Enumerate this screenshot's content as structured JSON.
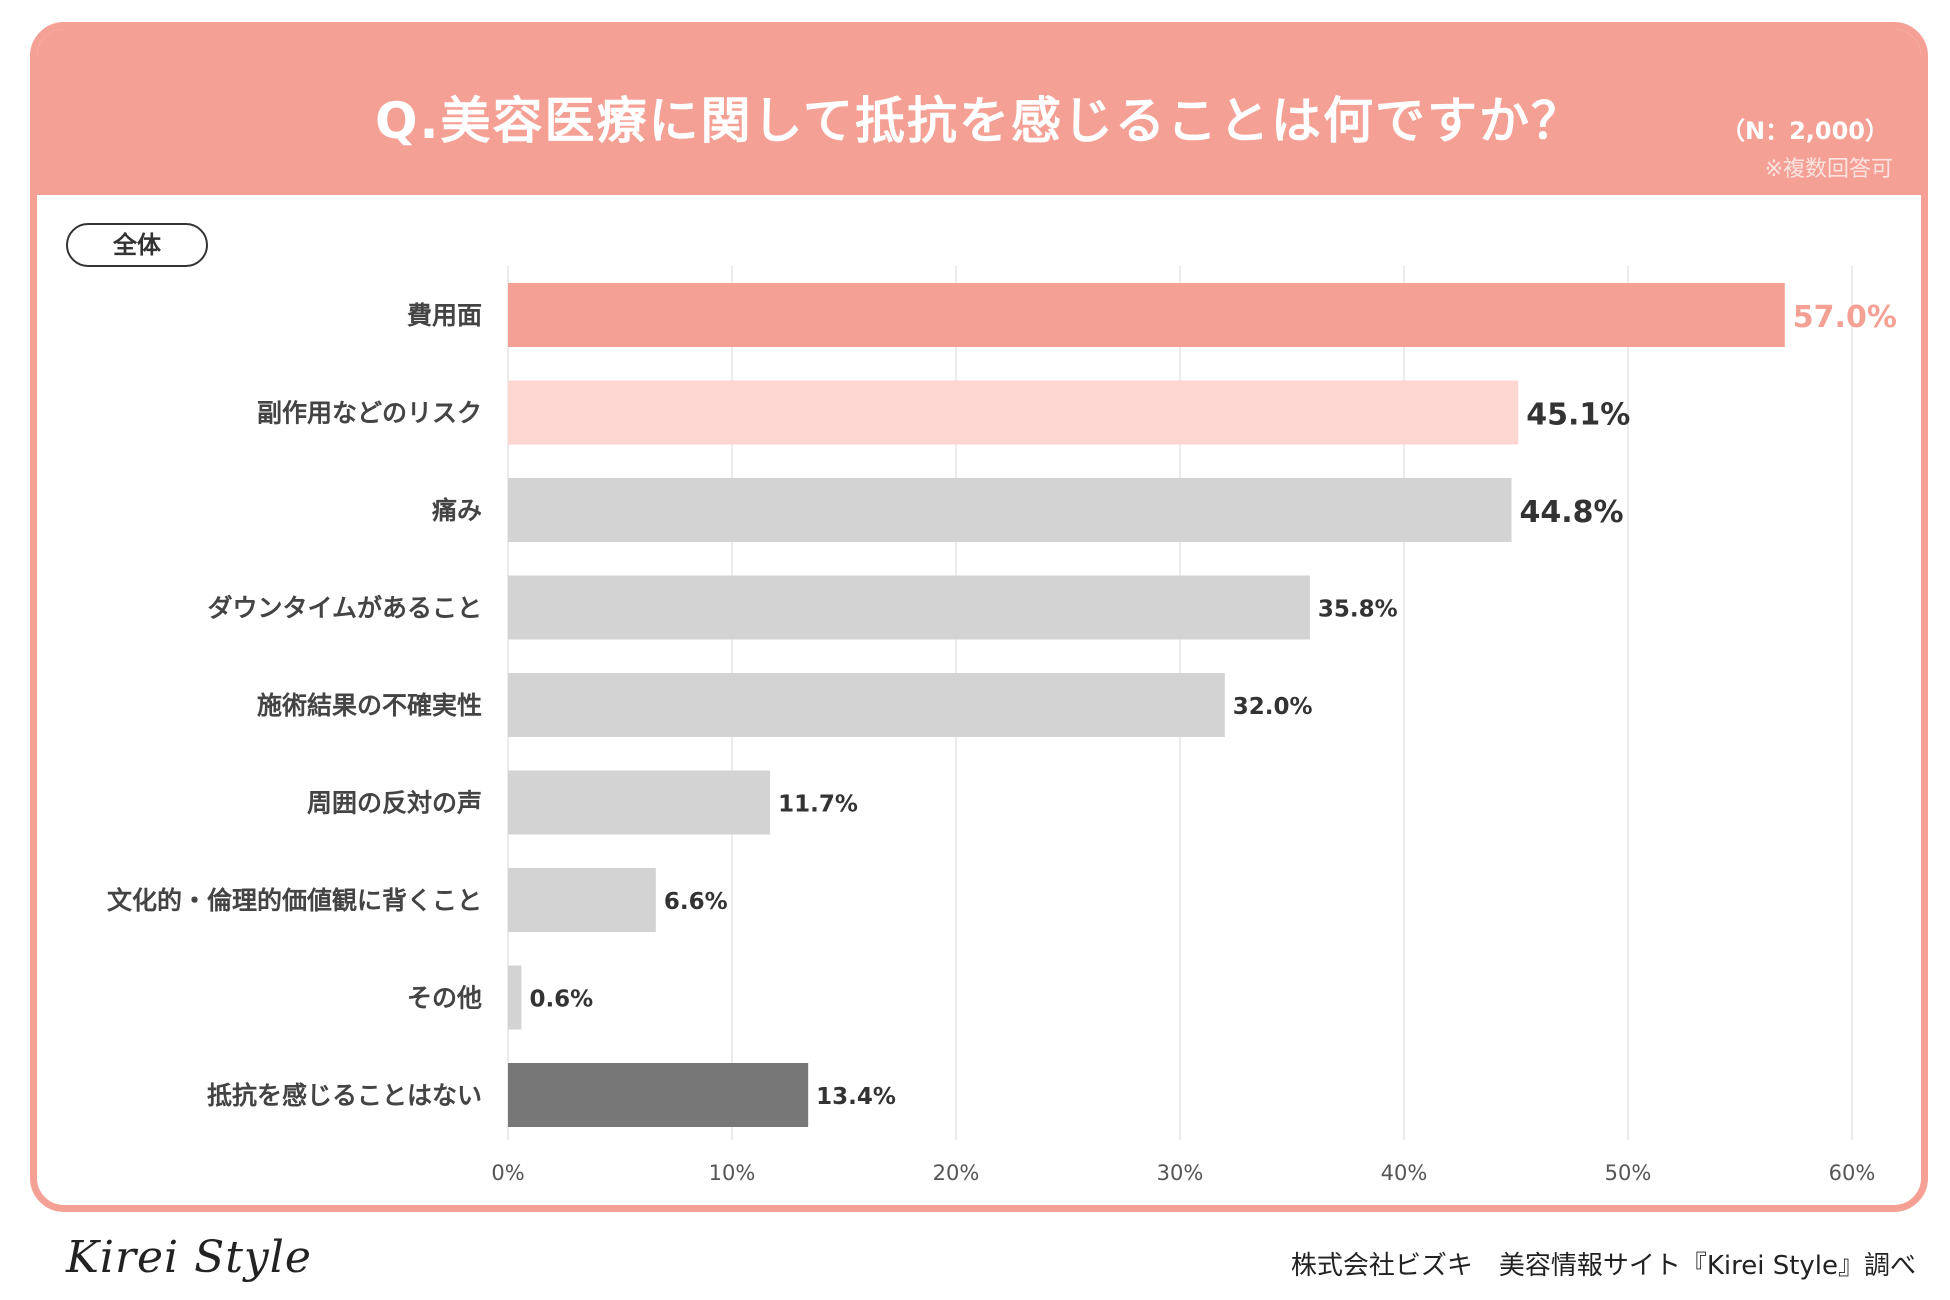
{
  "header": {
    "title": "Q.美容医療に関して抵抗を感じることは何ですか？",
    "n_label": "（N：2,000）",
    "note": "※複数回答可"
  },
  "segment_label": "全体",
  "chart_data": {
    "type": "bar",
    "orientation": "horizontal",
    "categories": [
      "費用面",
      "副作用などのリスク",
      "痛み",
      "ダウンタイムがあること",
      "施術結果の不確実性",
      "周囲の反対の声",
      "文化的・倫理的価値観に背くこと",
      "その他",
      "抵抗を感じることはない"
    ],
    "values": [
      57.0,
      45.1,
      44.8,
      35.8,
      32.0,
      11.7,
      6.6,
      0.6,
      13.4
    ],
    "value_labels": [
      "57.0%",
      "45.1%",
      "44.8%",
      "35.8%",
      "32.0%",
      "11.7%",
      "6.6%",
      "0.6%",
      "13.4%"
    ],
    "bar_colors": [
      "#F5A095",
      "#FDD6D1",
      "#D3D3D3",
      "#D3D3D3",
      "#D3D3D3",
      "#D3D3D3",
      "#D3D3D3",
      "#D3D3D3",
      "#777777"
    ],
    "label_colors": [
      "#F5A095",
      "#333333",
      "#333333",
      "#333333",
      "#333333",
      "#333333",
      "#333333",
      "#333333",
      "#333333"
    ],
    "xlim": [
      0,
      60
    ],
    "xticks": [
      0,
      10,
      20,
      30,
      40,
      50,
      60
    ],
    "xtick_labels": [
      "0%",
      "10%",
      "20%",
      "30%",
      "40%",
      "50%",
      "60%"
    ],
    "grid": true
  },
  "footer": {
    "logo": "Kirei Style",
    "credit": "株式会社ビズキ　美容情報サイト『Kirei Style』調べ"
  }
}
